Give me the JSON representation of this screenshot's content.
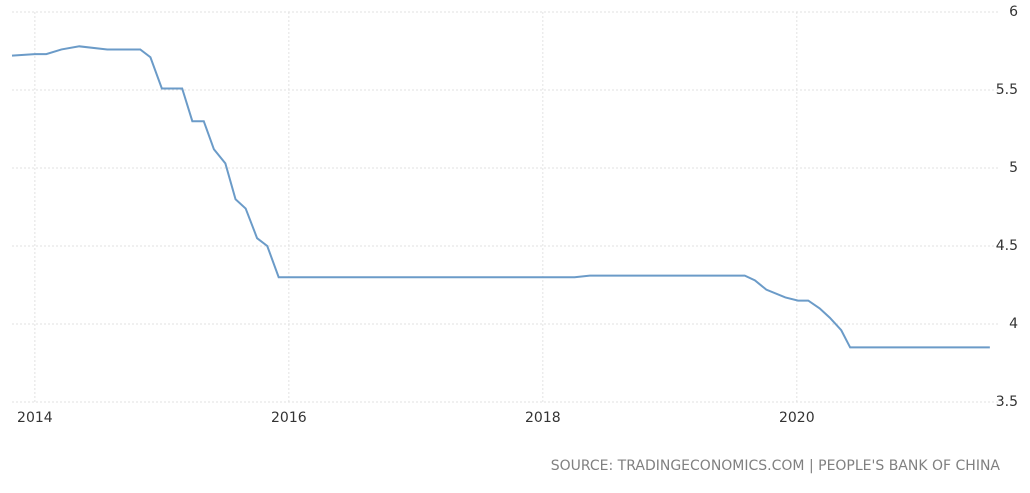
{
  "chart_data": {
    "type": "line",
    "source": "SOURCE: TRADINGECONOMICS.COM | PEOPLE'S BANK OF CHINA",
    "x": [
      2013.82,
      2014.0,
      2014.09,
      2014.21,
      2014.35,
      2014.57,
      2014.83,
      2014.91,
      2015.0,
      2015.16,
      2015.24,
      2015.33,
      2015.41,
      2015.5,
      2015.58,
      2015.66,
      2015.75,
      2015.83,
      2015.92,
      2018.25,
      2018.37,
      2019.59,
      2019.67,
      2019.76,
      2019.91,
      2020.01,
      2020.09,
      2020.18,
      2020.26,
      2020.35,
      2020.42,
      2021.52
    ],
    "values": [
      5.72,
      5.73,
      5.73,
      5.76,
      5.78,
      5.76,
      5.76,
      5.71,
      5.51,
      5.51,
      5.3,
      5.3,
      5.12,
      5.03,
      4.8,
      4.74,
      4.55,
      4.5,
      4.3,
      4.3,
      4.31,
      4.31,
      4.28,
      4.22,
      4.17,
      4.15,
      4.15,
      4.1,
      4.04,
      3.96,
      3.85,
      3.85
    ],
    "color": "#6b9bc8",
    "xlim": [
      2013.82,
      2021.6
    ],
    "xticks": [
      2014,
      2016,
      2018,
      2020
    ],
    "ylim": [
      3.5,
      6
    ],
    "yticks": [
      3.5,
      4,
      4.5,
      5,
      5.5,
      6
    ],
    "grid": true
  }
}
